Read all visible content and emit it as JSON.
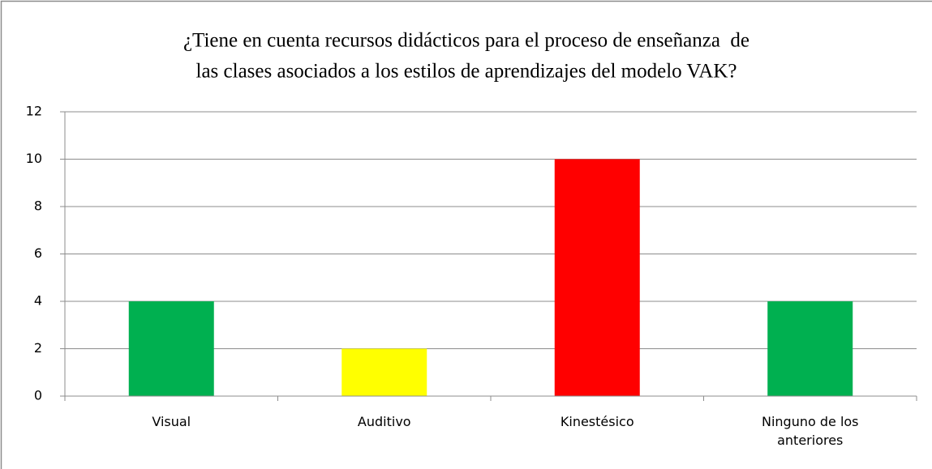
{
  "chart_data": {
    "type": "bar",
    "title": [
      "¿Tiene en cuenta recursos didácticos para el proceso de enseñanza  de",
      "las clases asociados a los estilos de aprendizajes del modelo VAK?"
    ],
    "categories": [
      "Visual",
      "Auditivo",
      "Kinestésico",
      "Ninguno de los anteriores"
    ],
    "values": [
      4,
      2,
      10,
      4
    ],
    "colors": [
      "#00b050",
      "#ffff00",
      "#ff0000",
      "#00b050"
    ],
    "ylim": [
      0,
      12
    ],
    "yticks": [
      0,
      2,
      4,
      6,
      8,
      10,
      12
    ],
    "grid": true
  }
}
